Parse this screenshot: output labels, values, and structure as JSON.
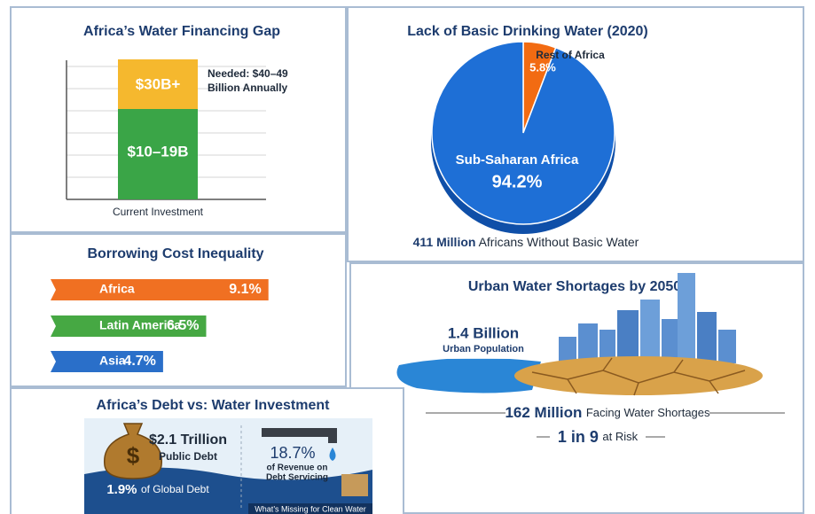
{
  "financing_gap": {
    "title": "Africa’s Water Financing Gap",
    "top_label": "$30B+",
    "bottom_label": "$10–19B",
    "needed": [
      "Needed: $40–49",
      "Billion Annually"
    ],
    "axis_label": "Current Investment"
  },
  "drinking_water": {
    "title": "Lack of Basic Drinking Water (2020)",
    "slices": [
      {
        "name": "Rest of Africa",
        "value": 5.8,
        "value_label": "5.8%",
        "color": "#f26b12"
      },
      {
        "name": "Sub-Saharan Africa",
        "value": 94.2,
        "value_label": "94.2%",
        "color": "#1e6fd6"
      }
    ],
    "footer_bold": "411 Million",
    "footer": "Africans Without Basic Water"
  },
  "borrowing": {
    "title": "Borrowing Cost Inequality",
    "bars": [
      {
        "name": "Africa",
        "value": 9.1,
        "value_label": "9.1%",
        "color": "#f07022"
      },
      {
        "name": "Latin America",
        "value": 6.5,
        "value_label": "6.5%",
        "color": "#46a843"
      },
      {
        "name": "Asia",
        "value": 4.7,
        "value_label": "4.7%",
        "color": "#2a6fc9"
      }
    ]
  },
  "urban": {
    "title": "Urban Water Shortages by 2050",
    "population_bold": "1.4 Billion",
    "population": "Urban Population",
    "shortage_bold": "162 Million",
    "shortage": "Facing Water Shortages",
    "risk_bold": "1 in 9",
    "risk": "at Risk"
  },
  "debt": {
    "title": "Africa’s Debt vs: Water Investment",
    "icon_symbol": "$",
    "debt_bold": "$2.1 Trillion",
    "debt": "Public Debt",
    "revenue_bold": "18.7%",
    "revenue": [
      "of Revenue on",
      "Debt Servicing"
    ],
    "global_bold": "1.9%",
    "global": "of Global Debt",
    "missing": "What’s Missing for Clean Water"
  }
}
